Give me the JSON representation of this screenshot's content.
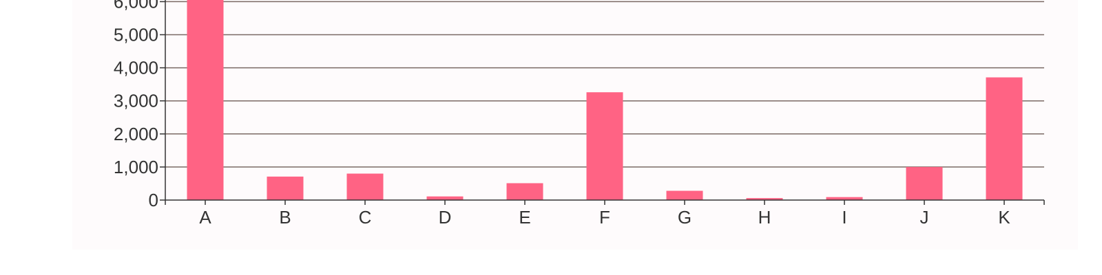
{
  "chart_data": {
    "type": "bar",
    "title": "",
    "xlabel": "",
    "ylabel": "",
    "categories": [
      "A",
      "B",
      "C",
      "D",
      "E",
      "F",
      "G",
      "H",
      "I",
      "J",
      "K"
    ],
    "series": [
      {
        "values": [
          6050,
          710,
          800,
          110,
          510,
          3260,
          280,
          60,
          90,
          1000,
          3710
        ],
        "color": "#ff6384"
      }
    ],
    "ylim": [
      0,
      6000
    ],
    "yticks": [
      0,
      1000,
      2000,
      3000,
      4000,
      5000,
      6000
    ],
    "ytick_labels": [
      "0",
      "1,000",
      "2,000",
      "3,000",
      "4,000",
      "5,000",
      "6,000"
    ],
    "grid": true,
    "legend": "none",
    "colors": {
      "bar": "#ff6384",
      "grid": "#7a6a64",
      "axis": "#333333",
      "background": "#fefbfc"
    }
  }
}
